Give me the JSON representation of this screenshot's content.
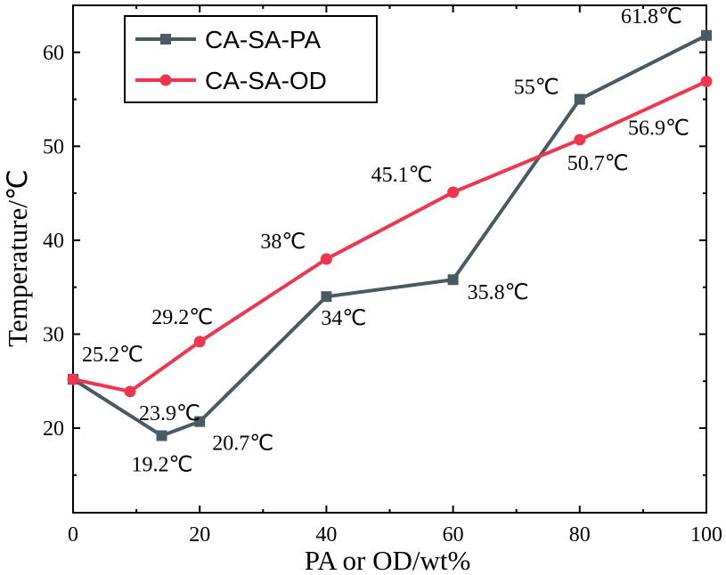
{
  "chart_data": {
    "type": "line",
    "title": "",
    "xlabel": "PA or OD/wt%",
    "ylabel": "Temperature/℃",
    "xlim": [
      0,
      100
    ],
    "ylim": [
      11,
      65
    ],
    "xticks": [
      0,
      20,
      40,
      60,
      80,
      100
    ],
    "yticks": [
      20,
      30,
      40,
      50,
      60
    ],
    "grid": false,
    "legend_position": "top-left",
    "series": [
      {
        "name": "CA-SA-PA",
        "color": "#4a5a60",
        "marker": "square",
        "x": [
          0,
          14,
          20,
          40,
          60,
          80,
          100
        ],
        "y": [
          25.2,
          19.2,
          20.7,
          34.0,
          35.8,
          55.0,
          61.8
        ],
        "labels": [
          "",
          "19.2℃",
          "20.7℃",
          "34℃",
          "35.8℃",
          "55℃",
          "61.8℃"
        ]
      },
      {
        "name": "CA-SA-OD",
        "color": "#f0364f",
        "marker": "circle",
        "x": [
          0,
          9,
          20,
          40,
          60,
          80,
          100
        ],
        "y": [
          25.2,
          23.9,
          29.2,
          38.0,
          45.1,
          50.7,
          56.9
        ],
        "labels": [
          "25.2℃",
          "23.9℃",
          "29.2℃",
          "38℃",
          "45.1℃",
          "50.7℃",
          "56.9℃"
        ]
      }
    ]
  }
}
